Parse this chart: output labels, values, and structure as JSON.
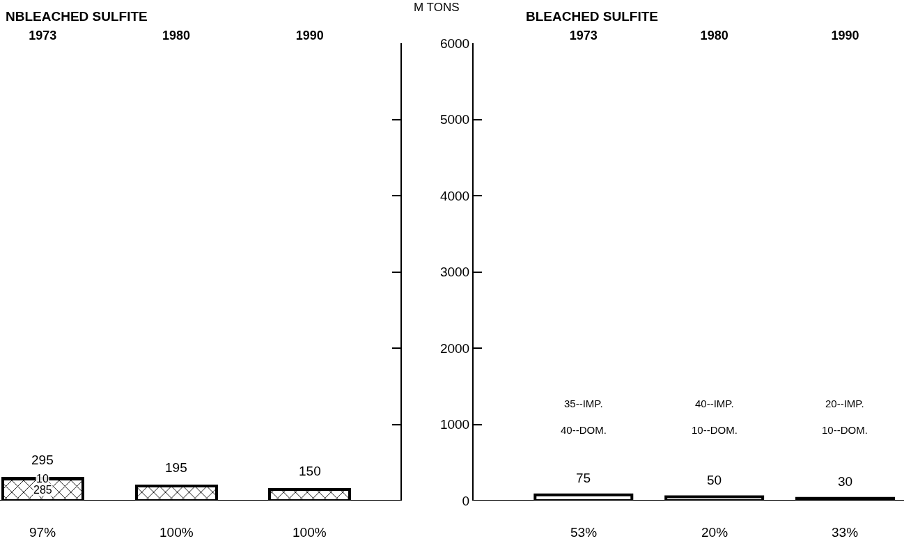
{
  "chart_data": [
    {
      "type": "bar",
      "title": "NBLEACHED SULFITE",
      "categories": [
        "1973",
        "1980",
        "1990"
      ],
      "stacked": true,
      "series": [
        {
          "color": "#000000",
          "values": [
            285,
            195,
            150
          ],
          "value_labels": [
            "285",
            null,
            null
          ]
        },
        {
          "color": "#ffffff",
          "values": [
            10,
            null,
            null
          ],
          "value_labels": [
            "10",
            null,
            null
          ]
        }
      ],
      "totals": [
        "295",
        "195",
        "150"
      ],
      "ylim": [
        0,
        6000
      ],
      "yticks": [
        0,
        1000,
        2000,
        3000,
        4000,
        5000,
        6000
      ],
      "tick_labels": "x",
      "grid": false,
      "annotations": [
        "97%",
        "100%",
        "100%"
      ]
    },
    {
      "type": "bar",
      "title": "BLEACHED SULFITE",
      "ylabel": "M TONS",
      "categories": [
        "1973",
        "1980",
        "1990"
      ],
      "series": [
        {
          "color": "#ffffff",
          "values": [
            75,
            50,
            30
          ]
        }
      ],
      "data_labels": true,
      "ylim": [
        0,
        6000
      ],
      "yticks": [
        0,
        1000,
        2000,
        3000,
        4000,
        5000,
        6000
      ],
      "grid": false,
      "annotations": [
        "35--IMP.",
        "40--DOM.",
        "53%",
        "40--IMP.",
        "10--DOM.",
        "20%",
        "20--IMP.",
        "10--DOM.",
        "33%"
      ]
    }
  ]
}
